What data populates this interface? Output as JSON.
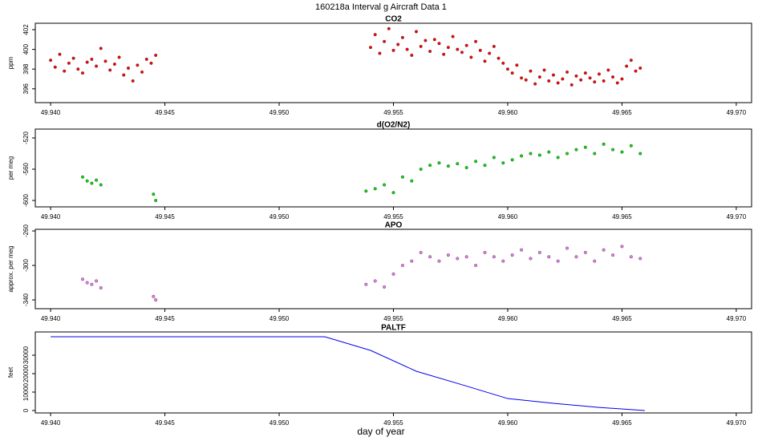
{
  "title": "160218a   Interval g Aircraft Data 1",
  "xlabel": "day of year",
  "chart_data": [
    {
      "type": "scatter",
      "title": "CO2",
      "ylabel": "ppm",
      "color": "#ff0000",
      "x": [
        49.94,
        49.9402,
        49.9404,
        49.9406,
        49.9408,
        49.941,
        49.9412,
        49.9414,
        49.9416,
        49.9418,
        49.942,
        49.9422,
        49.9424,
        49.9426,
        49.9428,
        49.943,
        49.9432,
        49.9434,
        49.9436,
        49.9438,
        49.944,
        49.9442,
        49.9444,
        49.9446,
        49.954,
        49.9542,
        49.9544,
        49.9546,
        49.9548,
        49.955,
        49.9552,
        49.9554,
        49.9556,
        49.9558,
        49.956,
        49.9562,
        49.9564,
        49.9566,
        49.9568,
        49.957,
        49.9572,
        49.9574,
        49.9576,
        49.9578,
        49.958,
        49.9582,
        49.9584,
        49.9586,
        49.9588,
        49.959,
        49.9592,
        49.9594,
        49.9596,
        49.9598,
        49.96,
        49.9602,
        49.9604,
        49.9606,
        49.9608,
        49.961,
        49.9612,
        49.9614,
        49.9616,
        49.9618,
        49.962,
        49.9622,
        49.9624,
        49.9626,
        49.9628,
        49.963,
        49.9632,
        49.9634,
        49.9636,
        49.9638,
        49.964,
        49.9642,
        49.9644,
        49.9646,
        49.9648,
        49.965,
        49.9652,
        49.9654,
        49.9656,
        49.9658
      ],
      "values": [
        398.9,
        398.2,
        399.5,
        397.8,
        398.6,
        399.1,
        398.0,
        397.6,
        398.7,
        399.0,
        398.3,
        400.1,
        398.8,
        397.9,
        398.5,
        399.2,
        397.4,
        398.1,
        396.8,
        398.4,
        397.7,
        399.0,
        398.6,
        399.4,
        400.2,
        401.5,
        399.6,
        400.8,
        402.1,
        399.9,
        400.5,
        401.2,
        400.0,
        399.4,
        401.8,
        400.3,
        400.9,
        399.8,
        401.0,
        400.6,
        399.5,
        400.2,
        401.3,
        400.0,
        399.7,
        400.4,
        399.2,
        400.8,
        399.9,
        398.8,
        399.6,
        400.3,
        399.1,
        398.6,
        398.0,
        397.6,
        398.4,
        397.1,
        396.9,
        397.8,
        396.5,
        397.2,
        397.9,
        396.8,
        397.4,
        396.6,
        397.0,
        397.7,
        396.4,
        397.3,
        396.9,
        397.6,
        397.1,
        396.7,
        397.5,
        396.8,
        397.9,
        397.2,
        396.6,
        397.0,
        398.3,
        398.9,
        397.8,
        398.1
      ],
      "xlim": [
        49.93933,
        49.97067
      ],
      "xticks": [
        {
          "value": 49.94,
          "label": "49.940"
        },
        {
          "value": 49.945,
          "label": "49.945"
        },
        {
          "value": 49.95,
          "label": "49.950"
        },
        {
          "value": 49.955,
          "label": "49.955"
        },
        {
          "value": 49.96,
          "label": "49.960"
        },
        {
          "value": 49.965,
          "label": "49.965"
        },
        {
          "value": 49.97,
          "label": "49.970"
        }
      ],
      "ylim": [
        394.6,
        402.65
      ],
      "yticks": [
        396,
        398,
        400,
        402
      ]
    },
    {
      "type": "scatter",
      "title": "d(O2/N2)",
      "ylabel": "per meg",
      "color": "#00dd00",
      "x": [
        49.9414,
        49.9416,
        49.9418,
        49.942,
        49.9422,
        49.9445,
        49.9446,
        49.9538,
        49.9542,
        49.9546,
        49.955,
        49.9554,
        49.9558,
        49.9562,
        49.9566,
        49.957,
        49.9574,
        49.9578,
        49.9582,
        49.9586,
        49.959,
        49.9594,
        49.9598,
        49.9602,
        49.9606,
        49.961,
        49.9614,
        49.9618,
        49.9622,
        49.9626,
        49.963,
        49.9634,
        49.9638,
        49.9642,
        49.9646,
        49.965,
        49.9654,
        49.9658
      ],
      "values": [
        -570,
        -575,
        -578,
        -574,
        -580,
        -592,
        -600,
        -588,
        -585,
        -580,
        -590,
        -570,
        -575,
        -560,
        -555,
        -552,
        -556,
        -553,
        -558,
        -550,
        -555,
        -545,
        -552,
        -548,
        -543,
        -540,
        -542,
        -538,
        -545,
        -540,
        -535,
        -532,
        -540,
        -528,
        -535,
        -538,
        -530,
        -540
      ],
      "xlim": [
        49.93933,
        49.97067
      ],
      "xticks": [
        {
          "value": 49.94,
          "label": "49.940"
        },
        {
          "value": 49.945,
          "label": "49.945"
        },
        {
          "value": 49.95,
          "label": "49.950"
        },
        {
          "value": 49.955,
          "label": "49.955"
        },
        {
          "value": 49.96,
          "label": "49.960"
        },
        {
          "value": 49.965,
          "label": "49.965"
        },
        {
          "value": 49.97,
          "label": "49.970"
        }
      ],
      "ylim": [
        -608.2,
        -508.7
      ],
      "yticks": [
        -520,
        -560,
        -600
      ]
    },
    {
      "type": "scatter",
      "title": "APO",
      "ylabel": "approx. per meg",
      "color": "#ee77ee",
      "x": [
        49.9414,
        49.9416,
        49.9418,
        49.942,
        49.9422,
        49.9445,
        49.9446,
        49.9538,
        49.9542,
        49.9546,
        49.955,
        49.9554,
        49.9558,
        49.9562,
        49.9566,
        49.957,
        49.9574,
        49.9578,
        49.9582,
        49.9586,
        49.959,
        49.9594,
        49.9598,
        49.9602,
        49.9606,
        49.961,
        49.9614,
        49.9618,
        49.9622,
        49.9626,
        49.963,
        49.9634,
        49.9638,
        49.9642,
        49.9646,
        49.965,
        49.9654,
        49.9658
      ],
      "values": [
        -316,
        -320,
        -322,
        -318,
        -326,
        -336,
        -340,
        -322,
        -318,
        -325,
        -310,
        -300,
        -295,
        -285,
        -290,
        -295,
        -288,
        -292,
        -290,
        -300,
        -285,
        -290,
        -295,
        -288,
        -282,
        -292,
        -285,
        -290,
        -295,
        -280,
        -290,
        -285,
        -295,
        -282,
        -288,
        -278,
        -290,
        -292
      ],
      "xlim": [
        49.93933,
        49.97067
      ],
      "xticks": [
        {
          "value": 49.94,
          "label": "49.940"
        },
        {
          "value": 49.945,
          "label": "49.945"
        },
        {
          "value": 49.95,
          "label": "49.950"
        },
        {
          "value": 49.955,
          "label": "49.955"
        },
        {
          "value": 49.96,
          "label": "49.960"
        },
        {
          "value": 49.965,
          "label": "49.965"
        },
        {
          "value": 49.97,
          "label": "49.970"
        }
      ],
      "ylim": [
        -350.2,
        -258.1
      ],
      "yticks": [
        -260,
        -300,
        -340
      ]
    },
    {
      "type": "line",
      "title": "PALTF",
      "ylabel": "feet",
      "color": "#0000ee",
      "x": [
        49.94,
        49.952,
        49.954,
        49.956,
        49.958,
        49.96,
        49.962,
        49.964,
        49.966
      ],
      "values": [
        40000,
        40000,
        32600,
        21300,
        14000,
        6500,
        3900,
        1700,
        0
      ],
      "xlim": [
        49.93933,
        49.97067
      ],
      "xticks": [
        {
          "value": 49.94,
          "label": "49.940"
        },
        {
          "value": 49.945,
          "label": "49.945"
        },
        {
          "value": 49.95,
          "label": "49.950"
        },
        {
          "value": 49.955,
          "label": "49.955"
        },
        {
          "value": 49.96,
          "label": "49.960"
        },
        {
          "value": 49.965,
          "label": "49.965"
        },
        {
          "value": 49.97,
          "label": "49.970"
        }
      ],
      "ylim": [
        -1300,
        42600
      ],
      "yticks": [
        0,
        10000,
        20000,
        30000
      ]
    }
  ]
}
